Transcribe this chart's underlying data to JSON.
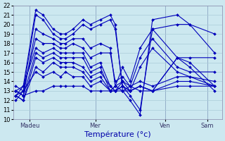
{
  "xlabel": "Température (°c)",
  "ylim": [
    10,
    22
  ],
  "yticks": [
    10,
    11,
    12,
    13,
    14,
    15,
    16,
    17,
    18,
    19,
    20,
    21,
    22
  ],
  "day_labels": [
    "Madeu",
    "Mer",
    "Ven",
    "Sam"
  ],
  "bg_color": "#cce8f0",
  "line_color": "#0000bb",
  "grid_color": "#aaccd8",
  "figsize": [
    3.2,
    2.0
  ],
  "dpi": 100,
  "series": [
    [
      12.5,
      13.5,
      21.5,
      21.0,
      19.5,
      19.0,
      19.0,
      19.5,
      20.5,
      20.0,
      20.5,
      21.0,
      20.0,
      13.0,
      12.0,
      10.5,
      20.5,
      21.0,
      20.0,
      19.0
    ],
    [
      12.0,
      13.0,
      21.0,
      20.5,
      19.0,
      18.5,
      18.5,
      19.0,
      20.0,
      19.5,
      20.0,
      20.5,
      19.5,
      13.5,
      12.5,
      11.0,
      19.5,
      20.0,
      20.0,
      17.0
    ],
    [
      13.0,
      12.5,
      19.5,
      19.0,
      18.5,
      18.0,
      18.0,
      18.5,
      18.5,
      17.5,
      18.0,
      17.5,
      13.5,
      15.5,
      14.0,
      17.5,
      19.5,
      16.5,
      16.5,
      16.5
    ],
    [
      12.5,
      13.0,
      18.5,
      18.0,
      18.0,
      17.5,
      17.5,
      18.0,
      17.5,
      16.5,
      17.0,
      17.0,
      14.0,
      14.5,
      13.5,
      16.5,
      18.5,
      15.5,
      15.0,
      15.0
    ],
    [
      13.0,
      13.5,
      17.5,
      17.0,
      17.5,
      17.0,
      17.0,
      17.0,
      17.0,
      15.5,
      16.0,
      13.5,
      13.0,
      13.5,
      13.0,
      15.5,
      17.5,
      15.0,
      14.5,
      14.0
    ],
    [
      13.0,
      12.5,
      17.0,
      16.5,
      17.0,
      16.5,
      16.5,
      16.5,
      16.5,
      15.0,
      15.5,
      13.0,
      13.5,
      13.0,
      13.5,
      13.0,
      13.0,
      16.5,
      16.0,
      13.5
    ],
    [
      12.5,
      12.0,
      16.5,
      16.0,
      16.5,
      16.0,
      16.0,
      16.0,
      15.5,
      14.5,
      15.0,
      13.5,
      13.0,
      14.0,
      13.0,
      13.5,
      13.0,
      16.5,
      15.5,
      13.0
    ],
    [
      12.5,
      12.0,
      15.5,
      15.0,
      16.0,
      15.5,
      15.5,
      15.5,
      15.0,
      14.0,
      14.5,
      13.0,
      13.5,
      14.0,
      13.5,
      14.0,
      13.5,
      14.5,
      14.5,
      13.5
    ],
    [
      13.5,
      13.0,
      15.0,
      14.5,
      15.0,
      14.5,
      15.0,
      14.5,
      14.5,
      13.5,
      14.0,
      13.0,
      13.0,
      13.5,
      13.0,
      13.5,
      13.0,
      14.0,
      14.0,
      13.5
    ],
    [
      13.0,
      12.5,
      13.0,
      13.0,
      13.5,
      13.5,
      13.5,
      13.5,
      13.5,
      13.0,
      13.0,
      13.0,
      13.0,
      13.0,
      13.0,
      13.5,
      13.0,
      13.5,
      13.5,
      13.5
    ]
  ],
  "x_positions": [
    0,
    0.3,
    0.8,
    1.1,
    1.5,
    1.8,
    2.0,
    2.3,
    2.7,
    3.0,
    3.4,
    3.8,
    4.0,
    4.3,
    4.6,
    5.0,
    5.5,
    6.5,
    7.0,
    8.0
  ],
  "vline_positions": [
    0.55,
    3.2,
    6.0,
    7.7
  ],
  "vline_labels": [
    "Madeu",
    "Mer",
    "Ven",
    "Sam"
  ]
}
